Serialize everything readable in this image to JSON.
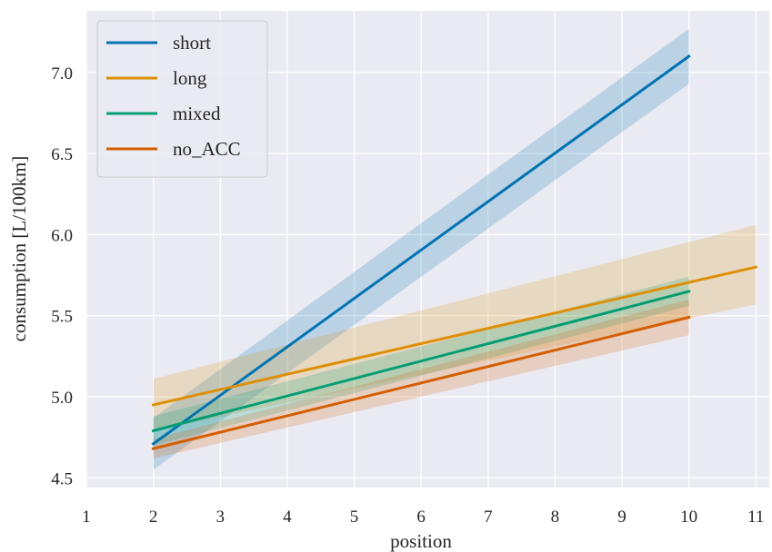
{
  "chart_data": {
    "type": "line",
    "title": "",
    "xlabel": "position",
    "ylabel": "consumption [L/100km]",
    "xlim": [
      1,
      11.2
    ],
    "ylim": [
      4.44,
      7.38
    ],
    "xticks": [
      1,
      2,
      3,
      4,
      5,
      6,
      7,
      8,
      9,
      10,
      11
    ],
    "yticks": [
      4.5,
      5.0,
      5.5,
      6.0,
      6.5,
      7.0
    ],
    "ytick_labels": [
      "4.5",
      "5.0",
      "5.5",
      "6.0",
      "6.5",
      "7.0"
    ],
    "grid": true,
    "legend_position": "top-left",
    "series": [
      {
        "name": "short",
        "color": "#0173b2",
        "x": [
          2,
          10
        ],
        "y": [
          4.71,
          7.1
        ],
        "ci_lower": [
          4.55,
          6.93
        ],
        "ci_upper": [
          4.87,
          7.27
        ]
      },
      {
        "name": "long",
        "color": "#de8f05",
        "x": [
          2,
          11
        ],
        "y": [
          4.95,
          5.8
        ],
        "ci_lower": [
          4.79,
          5.57
        ],
        "ci_upper": [
          5.11,
          6.06
        ]
      },
      {
        "name": "mixed",
        "color": "#029e73",
        "x": [
          2,
          10
        ],
        "y": [
          4.79,
          5.65
        ],
        "ci_lower": [
          4.7,
          5.56
        ],
        "ci_upper": [
          4.88,
          5.74
        ]
      },
      {
        "name": "no_ACC",
        "color": "#d55e00",
        "x": [
          2,
          10
        ],
        "y": [
          4.68,
          5.49
        ],
        "ci_lower": [
          4.62,
          5.38
        ],
        "ci_upper": [
          4.74,
          5.6
        ]
      }
    ]
  },
  "style": {
    "plot_background": "#eaeaf2",
    "grid_color": "#ffffff",
    "legend_background": "#eaeaf2",
    "legend_border": "#cccccc"
  }
}
